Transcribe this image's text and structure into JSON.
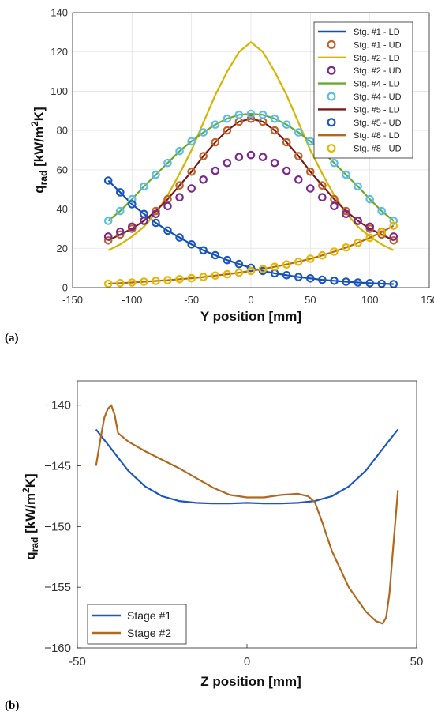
{
  "figure": {
    "panel_a_label": "(a)",
    "panel_b_label": "(b)"
  },
  "chart_data": [
    {
      "type": "line",
      "panel": "(a)",
      "xlabel": "Y position [mm]",
      "ylabel": "q_rad [kW/m^2K]",
      "ylabel_parts": {
        "q": "q",
        "sub": "rad",
        "unit1": " [kW/m",
        "sup": "2",
        "unit2": "K]"
      },
      "xlim": [
        -150,
        150
      ],
      "ylim": [
        0,
        140
      ],
      "xticks": [
        -150,
        -100,
        -50,
        0,
        50,
        100,
        150
      ],
      "yticks": [
        0,
        20,
        40,
        60,
        80,
        100,
        120,
        140
      ],
      "grid": true,
      "legend_position": "top-right",
      "x": [
        -120,
        -110,
        -100,
        -90,
        -80,
        -70,
        -60,
        -50,
        -40,
        -30,
        -20,
        -10,
        0,
        10,
        20,
        30,
        40,
        50,
        60,
        70,
        80,
        90,
        100,
        110,
        120
      ],
      "series": [
        {
          "name": "Stg. #1 - LD",
          "style": "line",
          "color": "#0f50b5",
          "values": [
            54.5,
            48.5,
            42.5,
            37.5,
            33,
            29,
            25.5,
            22,
            19,
            16.5,
            14,
            12,
            10,
            8.5,
            7.3,
            6.3,
            5.4,
            4.7,
            4.0,
            3.5,
            3.0,
            2.6,
            2.3,
            2.0,
            1.8
          ]
        },
        {
          "name": "Stg. #1 - UD",
          "style": "marker",
          "color": "#c0622b",
          "values": [
            24,
            27,
            30,
            34,
            39,
            45,
            52,
            59,
            67,
            74,
            80,
            84.5,
            86,
            84.5,
            80,
            74,
            67,
            59,
            52,
            45,
            39,
            34,
            30,
            27,
            24
          ]
        },
        {
          "name": "Stg. #2 - LD",
          "style": "line",
          "color": "#d4b500",
          "values": [
            19,
            22,
            26,
            31,
            38,
            47,
            58,
            70,
            84,
            98,
            110,
            120,
            125,
            120,
            110,
            98,
            84,
            70,
            58,
            47,
            38,
            31,
            26,
            22,
            19
          ]
        },
        {
          "name": "Stg. #2 - UD",
          "style": "marker",
          "color": "#7a2a8c",
          "values": [
            26,
            28.5,
            31,
            34,
            37.5,
            41.5,
            46,
            50.5,
            55,
            59.5,
            63.5,
            66.5,
            67.5,
            66.5,
            63.5,
            59.5,
            55,
            50.5,
            46,
            41.5,
            37.5,
            34,
            31,
            28.5,
            26
          ]
        },
        {
          "name": "Stg. #4 - LD",
          "style": "line",
          "color": "#6aaa2a",
          "values": [
            34,
            39,
            45,
            51.5,
            57.5,
            63.5,
            69.5,
            74.5,
            79,
            83,
            86,
            88,
            88.5,
            88,
            86,
            83,
            79,
            74.5,
            69.5,
            63.5,
            57.5,
            51.5,
            45,
            39,
            34
          ]
        },
        {
          "name": "Stg. #4 - UD",
          "style": "marker",
          "color": "#5cbde8",
          "values": [
            34,
            39,
            45,
            51.5,
            57.5,
            63.5,
            69.5,
            74.5,
            79,
            83,
            86,
            88,
            88.5,
            88,
            86,
            83,
            79,
            74.5,
            69.5,
            63.5,
            57.5,
            51.5,
            45,
            39,
            34
          ]
        },
        {
          "name": "Stg. #5 - LD",
          "style": "line",
          "color": "#7a1a1a",
          "values": [
            24,
            27,
            30,
            34,
            39,
            45,
            52,
            59,
            67,
            74,
            80,
            84.5,
            86,
            84.5,
            80,
            74,
            67,
            59,
            52,
            45,
            39,
            34,
            30,
            27,
            24
          ]
        },
        {
          "name": "Stg. #5 - UD",
          "style": "marker",
          "color": "#1e56c0",
          "values": [
            54.5,
            48.5,
            42.5,
            37.5,
            33,
            29,
            25.5,
            22,
            19,
            16.5,
            14,
            12,
            10,
            8.5,
            7.3,
            6.3,
            5.4,
            4.7,
            4.0,
            3.5,
            3.0,
            2.6,
            2.3,
            2.0,
            1.8
          ]
        },
        {
          "name": "Stg. #8 - LD",
          "style": "line",
          "color": "#b06a1f",
          "values": [
            2.0,
            2.3,
            2.6,
            3.0,
            3.4,
            3.8,
            4.3,
            4.8,
            5.4,
            6.1,
            6.8,
            7.6,
            8.5,
            9.5,
            10.6,
            11.8,
            13.2,
            14.7,
            16.4,
            18.3,
            20.4,
            22.8,
            25.4,
            28.3,
            31.5
          ]
        },
        {
          "name": "Stg. #8 - UD",
          "style": "marker",
          "color": "#e6b800",
          "values": [
            2.0,
            2.3,
            2.6,
            3.0,
            3.4,
            3.8,
            4.3,
            4.8,
            5.4,
            6.1,
            6.8,
            7.6,
            8.5,
            9.5,
            10.6,
            11.8,
            13.2,
            14.7,
            16.4,
            18.3,
            20.4,
            22.8,
            25.4,
            28.3,
            31.5
          ]
        }
      ]
    },
    {
      "type": "line",
      "panel": "(b)",
      "xlabel": "Z position [mm]",
      "ylabel": "q_rad [kW/m^2K]",
      "ylabel_parts": {
        "q": "q",
        "sub": "rad",
        "unit1": " [kW/m",
        "sup": "2",
        "unit2": "K]"
      },
      "xlim": [
        -50,
        50
      ],
      "ylim": [
        -160,
        -138
      ],
      "xticks": [
        -50,
        0,
        50
      ],
      "yticks": [
        -160,
        -155,
        -150,
        -145,
        -140
      ],
      "grid": false,
      "legend_position": "bottom-left",
      "series": [
        {
          "name": "Stage #1",
          "color": "#1e56c0",
          "x": [
            -44.5,
            -40,
            -35,
            -30,
            -25,
            -20,
            -15,
            -10,
            -5,
            0,
            5,
            10,
            15,
            20,
            25,
            30,
            35,
            40,
            44.5
          ],
          "y": [
            -142,
            -143.6,
            -145.4,
            -146.7,
            -147.5,
            -147.9,
            -148.05,
            -148.1,
            -148.1,
            -148.05,
            -148.1,
            -148.1,
            -148.05,
            -147.9,
            -147.5,
            -146.7,
            -145.4,
            -143.6,
            -142
          ]
        },
        {
          "name": "Stage #2",
          "color": "#b06a1f",
          "x": [
            -44.5,
            -43,
            -42,
            -41,
            -40,
            -39,
            -38,
            -35,
            -30,
            -25,
            -20,
            -15,
            -10,
            -5,
            0,
            5,
            10,
            15,
            18,
            20,
            22,
            25,
            30,
            35,
            38,
            40,
            41,
            42,
            43,
            44.5
          ],
          "y": [
            -145,
            -142.5,
            -141,
            -140.3,
            -140,
            -140.8,
            -142.3,
            -143,
            -143.8,
            -144.5,
            -145.2,
            -146,
            -146.8,
            -147.4,
            -147.6,
            -147.6,
            -147.4,
            -147.3,
            -147.5,
            -148,
            -149.5,
            -152,
            -155,
            -157,
            -157.8,
            -158,
            -157.5,
            -155.5,
            -152,
            -147
          ]
        }
      ]
    }
  ]
}
